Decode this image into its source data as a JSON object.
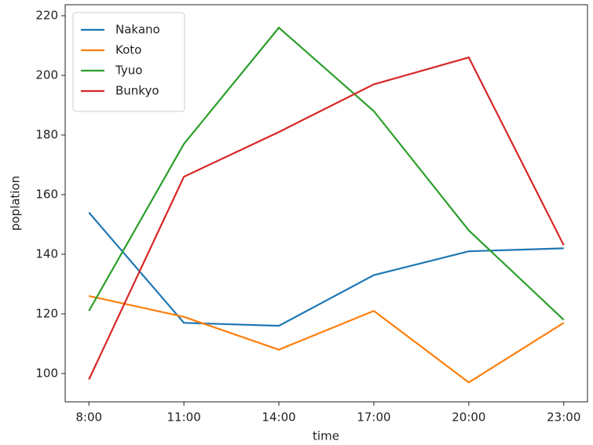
{
  "chart_data": {
    "type": "line",
    "x_label": "time",
    "y_label": "poplation",
    "categories": [
      "8:00",
      "11:00",
      "14:00",
      "17:00",
      "20:00",
      "23:00"
    ],
    "series": [
      {
        "name": "Nakano",
        "color": "#1f77b4",
        "values": [
          154,
          117,
          116,
          133,
          141,
          142
        ]
      },
      {
        "name": "Koto",
        "color": "#ff7f0e",
        "values": [
          126,
          119,
          108,
          121,
          97,
          117
        ]
      },
      {
        "name": "Tyuo",
        "color": "#2ca02c",
        "values": [
          121,
          177,
          216,
          188,
          148,
          118
        ]
      },
      {
        "name": "Bunkyo",
        "color": "#d62728",
        "values": [
          98,
          166,
          181,
          197,
          206,
          143
        ]
      }
    ],
    "ylim": [
      90.5,
      223.7
    ],
    "yticks": [
      100,
      120,
      140,
      160,
      180,
      200,
      220
    ],
    "legend": "upper left",
    "grid": false
  }
}
